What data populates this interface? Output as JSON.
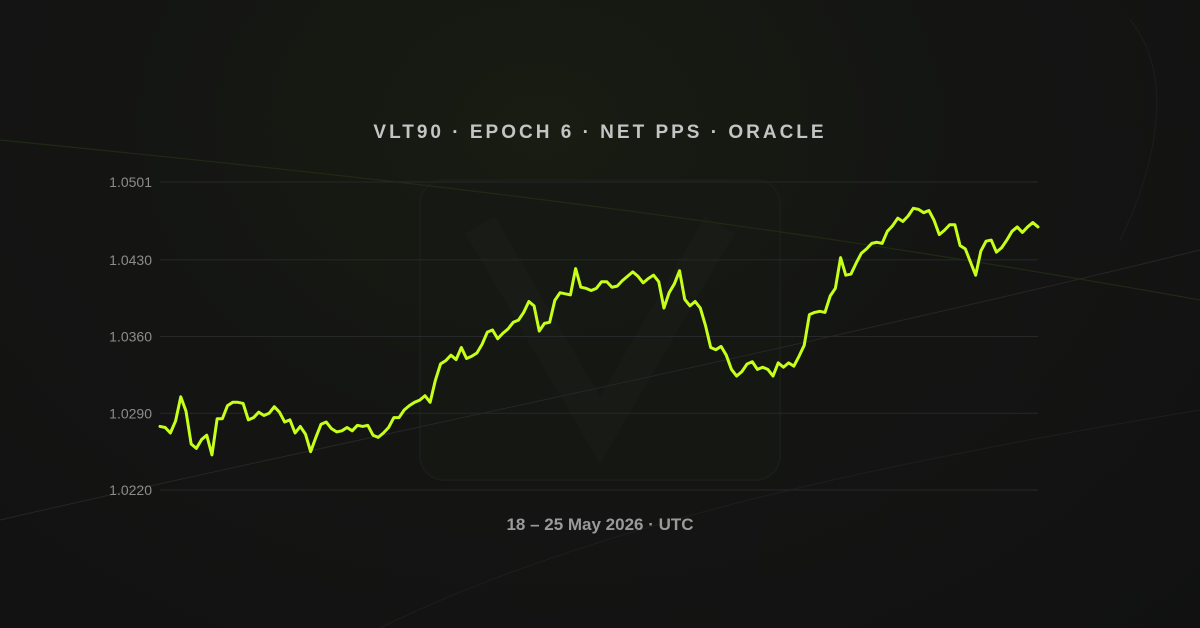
{
  "chart_data": {
    "type": "line",
    "title": "VLT90 · EPOCH 6 · NET PPS · ORACLE",
    "xlabel": "18 – 25 May 2026 · UTC",
    "ylabel": "",
    "ylim": [
      1.022,
      1.0501
    ],
    "yticks": [
      "1.0501",
      "1.0430",
      "1.0360",
      "1.0290",
      "1.0220"
    ],
    "ytick_values": [
      1.0501,
      1.043,
      1.036,
      1.029,
      1.022
    ],
    "grid": true,
    "legend": "none",
    "series": [
      {
        "values": [
          1.0278,
          1.0277,
          1.0272,
          1.0283,
          1.0305,
          1.0292,
          1.0262,
          1.0258,
          1.0266,
          1.027,
          1.0252,
          1.0285,
          1.0285,
          1.0297,
          1.03,
          1.03,
          1.0299,
          1.0284,
          1.0286,
          1.0291,
          1.0288,
          1.029,
          1.0296,
          1.0291,
          1.0282,
          1.0284,
          1.0272,
          1.0278,
          1.0271,
          1.0255,
          1.0268,
          1.028,
          1.0282,
          1.0276,
          1.0273,
          1.0274,
          1.0277,
          1.0274,
          1.0279,
          1.0278,
          1.0279,
          1.027,
          1.0268,
          1.0272,
          1.0277,
          1.0286,
          1.0286,
          1.0293,
          1.0297,
          1.03,
          1.0302,
          1.0306,
          1.03,
          1.032,
          1.0335,
          1.0338,
          1.0343,
          1.0339,
          1.035,
          1.034,
          1.0342,
          1.0345,
          1.0353,
          1.0364,
          1.0366,
          1.0358,
          1.0363,
          1.0367,
          1.0373,
          1.0375,
          1.0382,
          1.0392,
          1.0388,
          1.0365,
          1.0372,
          1.0373,
          1.0393,
          1.04,
          1.0399,
          1.0398,
          1.0422,
          1.0405,
          1.0404,
          1.0402,
          1.0404,
          1.041,
          1.041,
          1.0405,
          1.0406,
          1.0411,
          1.0415,
          1.0419,
          1.0415,
          1.0409,
          1.0413,
          1.0416,
          1.041,
          1.0386,
          1.04,
          1.0408,
          1.042,
          1.0394,
          1.0388,
          1.0392,
          1.0386,
          1.037,
          1.035,
          1.0348,
          1.0351,
          1.0343,
          1.033,
          1.0324,
          1.0328,
          1.0335,
          1.0337,
          1.033,
          1.0332,
          1.033,
          1.0324,
          1.0336,
          1.0332,
          1.0336,
          1.0333,
          1.0342,
          1.0352,
          1.038,
          1.0382,
          1.0383,
          1.0382,
          1.0397,
          1.0404,
          1.0432,
          1.0416,
          1.0417,
          1.0427,
          1.0436,
          1.044,
          1.0445,
          1.0446,
          1.0445,
          1.0456,
          1.0461,
          1.0468,
          1.0465,
          1.047,
          1.0477,
          1.0476,
          1.0473,
          1.0475,
          1.0466,
          1.0453,
          1.0457,
          1.0462,
          1.0462,
          1.0443,
          1.044,
          1.0428,
          1.0416,
          1.0438,
          1.0447,
          1.0448,
          1.0437,
          1.0441,
          1.0448,
          1.0456,
          1.046,
          1.0455,
          1.046,
          1.0464,
          1.046
        ]
      }
    ]
  },
  "colors": {
    "line": "#c6ff1a",
    "grid": "#26282a",
    "title": "#c4c4c4",
    "tick": "#8c8c8c",
    "xlabel": "#9a9a9a",
    "background": "#121212"
  }
}
